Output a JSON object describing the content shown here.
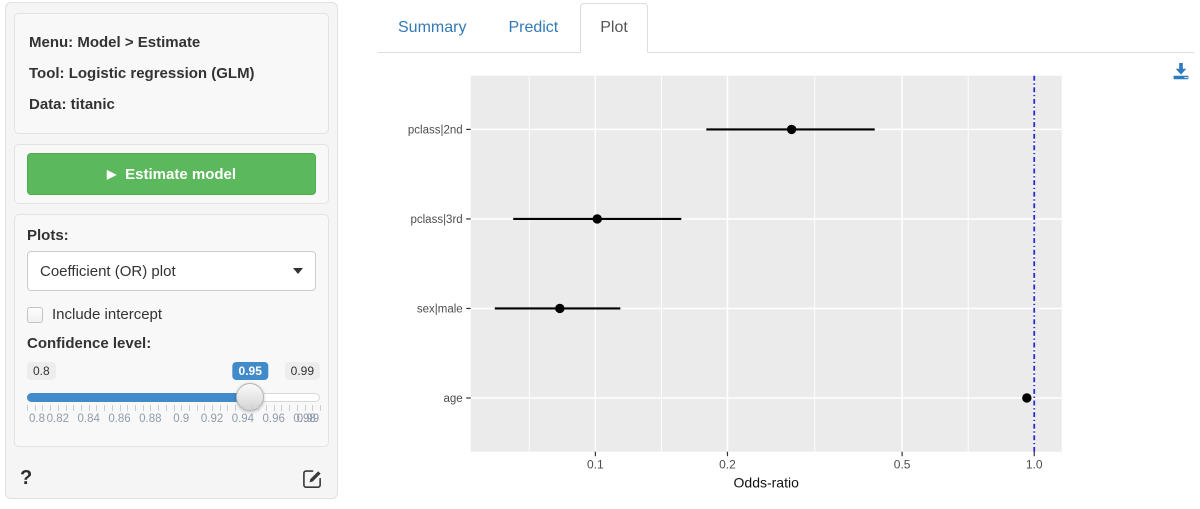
{
  "sidebar": {
    "info": {
      "menu": "Menu: Model > Estimate",
      "tool": "Tool: Logistic regression (GLM)",
      "data": "Data: titanic"
    },
    "estimate_button": {
      "label": "Estimate model",
      "play_icon": "▶"
    },
    "plots": {
      "label": "Plots:",
      "selected_option": "Coefficient (OR) plot",
      "include_intercept": {
        "label": "Include intercept",
        "checked": false
      },
      "confidence": {
        "label": "Confidence level:",
        "min": 0.8,
        "max": 0.99,
        "value": 0.95,
        "min_label": "0.8",
        "max_label": "0.99",
        "value_label": "0.95",
        "grid_labels": [
          "0.8",
          "0.82",
          "0.84",
          "0.86",
          "0.88",
          "0.9",
          "0.92",
          "0.94",
          "0.96",
          "0.98",
          "0.99"
        ],
        "tick_step": 0.005
      }
    },
    "footer": {
      "help_label": "?",
      "edit_icon": "pencil-square",
      "help_icon": "question-mark"
    }
  },
  "main": {
    "tabs": [
      {
        "label": "Summary",
        "active": false
      },
      {
        "label": "Predict",
        "active": false
      },
      {
        "label": "Plot",
        "active": true
      }
    ],
    "download_icon": "download"
  },
  "chart_data": {
    "type": "scatter",
    "subtype": "coefficient-odds-ratio-dot-whisker",
    "title": "",
    "xlabel": "Odds-ratio",
    "ylabel": "",
    "x_scale": "log10",
    "x_domain": [
      0.052,
      1.155
    ],
    "x_ticks": [
      {
        "value": 0.1,
        "label": "0.1"
      },
      {
        "value": 0.2,
        "label": "0.2"
      },
      {
        "value": 0.5,
        "label": "0.5"
      },
      {
        "value": 1.0,
        "label": "1.0"
      }
    ],
    "x_minor_gridlines": [
      0.0707,
      0.1414,
      0.3162,
      0.7071
    ],
    "reference_line": {
      "x": 1.0,
      "color": "#2b2bd0",
      "linetype": "dotdash"
    },
    "categories_top_to_bottom": [
      "pclass|2nd",
      "pclass|3rd",
      "sex|male",
      "age"
    ],
    "series": [
      {
        "name": "pclass|2nd",
        "odds_ratio": 0.28,
        "ci_low": 0.179,
        "ci_high": 0.433
      },
      {
        "name": "pclass|3rd",
        "odds_ratio": 0.101,
        "ci_low": 0.065,
        "ci_high": 0.157
      },
      {
        "name": "sex|male",
        "odds_ratio": 0.083,
        "ci_low": 0.059,
        "ci_high": 0.114
      },
      {
        "name": "age",
        "odds_ratio": 0.962,
        "ci_low": 0.947,
        "ci_high": 0.978
      }
    ],
    "grid": true,
    "legend": "none",
    "panel_bg": "#ebebeb",
    "grid_color": "#ffffff",
    "point_color": "#000000"
  },
  "colors": {
    "accent_green": "#5cb85c",
    "accent_blue": "#428bca",
    "tab_link_blue": "#337ab7",
    "download_blue": "#2e7abf",
    "panel_gray": "#ebebeb",
    "ref_line_blue": "#2b2bd0"
  }
}
